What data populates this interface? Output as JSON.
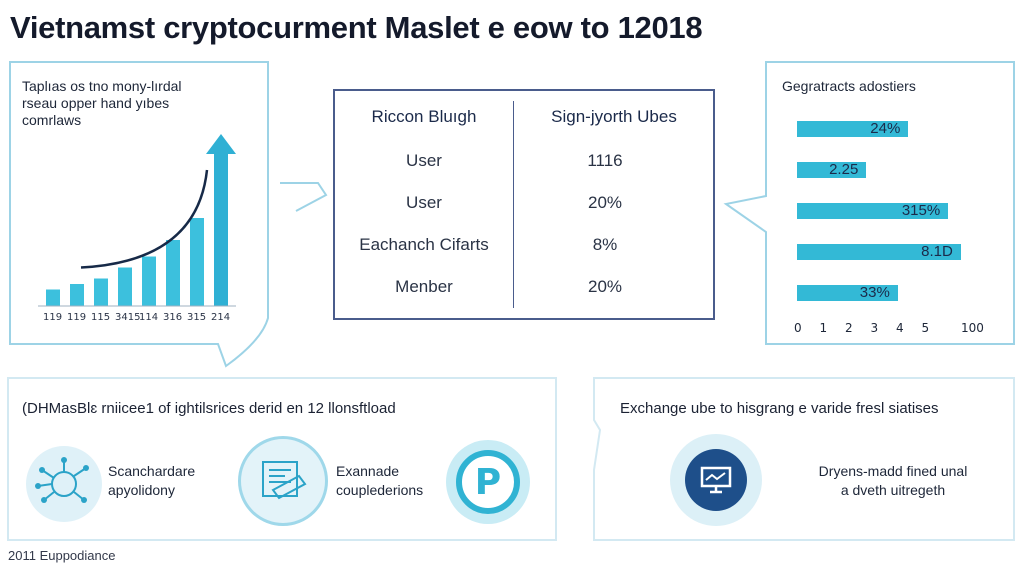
{
  "title": "Vietnamst cryptocurment Maslet e eow to 12018",
  "left_panel": {
    "caption_lines": [
      "Taplıas os tno mony-lırdal",
      "rseau opper hand yıbes",
      "comrlaws"
    ],
    "chart_data": {
      "type": "bar",
      "categories": [
        "119",
        "119",
        "115",
        "3415",
        "114",
        "316",
        "315",
        "214"
      ],
      "values": [
        3,
        4,
        5,
        7,
        9,
        12,
        16,
        28
      ],
      "trend": "up",
      "xlabel": "",
      "ylabel": ""
    }
  },
  "center_table": {
    "headers": [
      "Riccon Bluıgh",
      "Sign-jyorth Ubes"
    ],
    "rows": [
      [
        "User",
        "1116"
      ],
      [
        "User",
        "20%"
      ],
      [
        "Eachanch Cifarts",
        "8%"
      ],
      [
        "Menber",
        "20%"
      ]
    ]
  },
  "right_panel": {
    "title": "Gegratracts adostiers",
    "chart_data": {
      "type": "bar",
      "orientation": "horizontal",
      "data_labels": [
        "24%",
        "2.25",
        "315%",
        "8.1D",
        "33%"
      ],
      "values": [
        0.53,
        0.33,
        0.72,
        0.78,
        0.48
      ],
      "xticks": [
        "0",
        "1",
        "2",
        "3",
        "4",
        "5",
        "100"
      ]
    }
  },
  "bottom_left": {
    "heading": "(DHMasBlɛ rniicee1 of ightilsrices derid en 12 llonsftload",
    "items": [
      {
        "icon": "network-icon",
        "lines": [
          "Scanchardare",
          "apyolidony"
        ]
      },
      {
        "icon": "ledger-icon",
        "lines": [
          "Exannade",
          "couplederions"
        ]
      },
      {
        "icon": "p-coin-icon",
        "lines": []
      }
    ]
  },
  "bottom_right": {
    "heading": "Exchange ube to hisgrang e varide fresl siatises",
    "icon": "monitor-icon",
    "lines": [
      "Dryens-madd fined unal",
      "a dveth uitregeth"
    ]
  },
  "footer": "2011 Euppodiance",
  "colors": {
    "accent": "#33b9d6",
    "panel_border": "#9dd3e6",
    "dark_blue": "#1e4f8a",
    "table_border": "#4a5c8c"
  }
}
